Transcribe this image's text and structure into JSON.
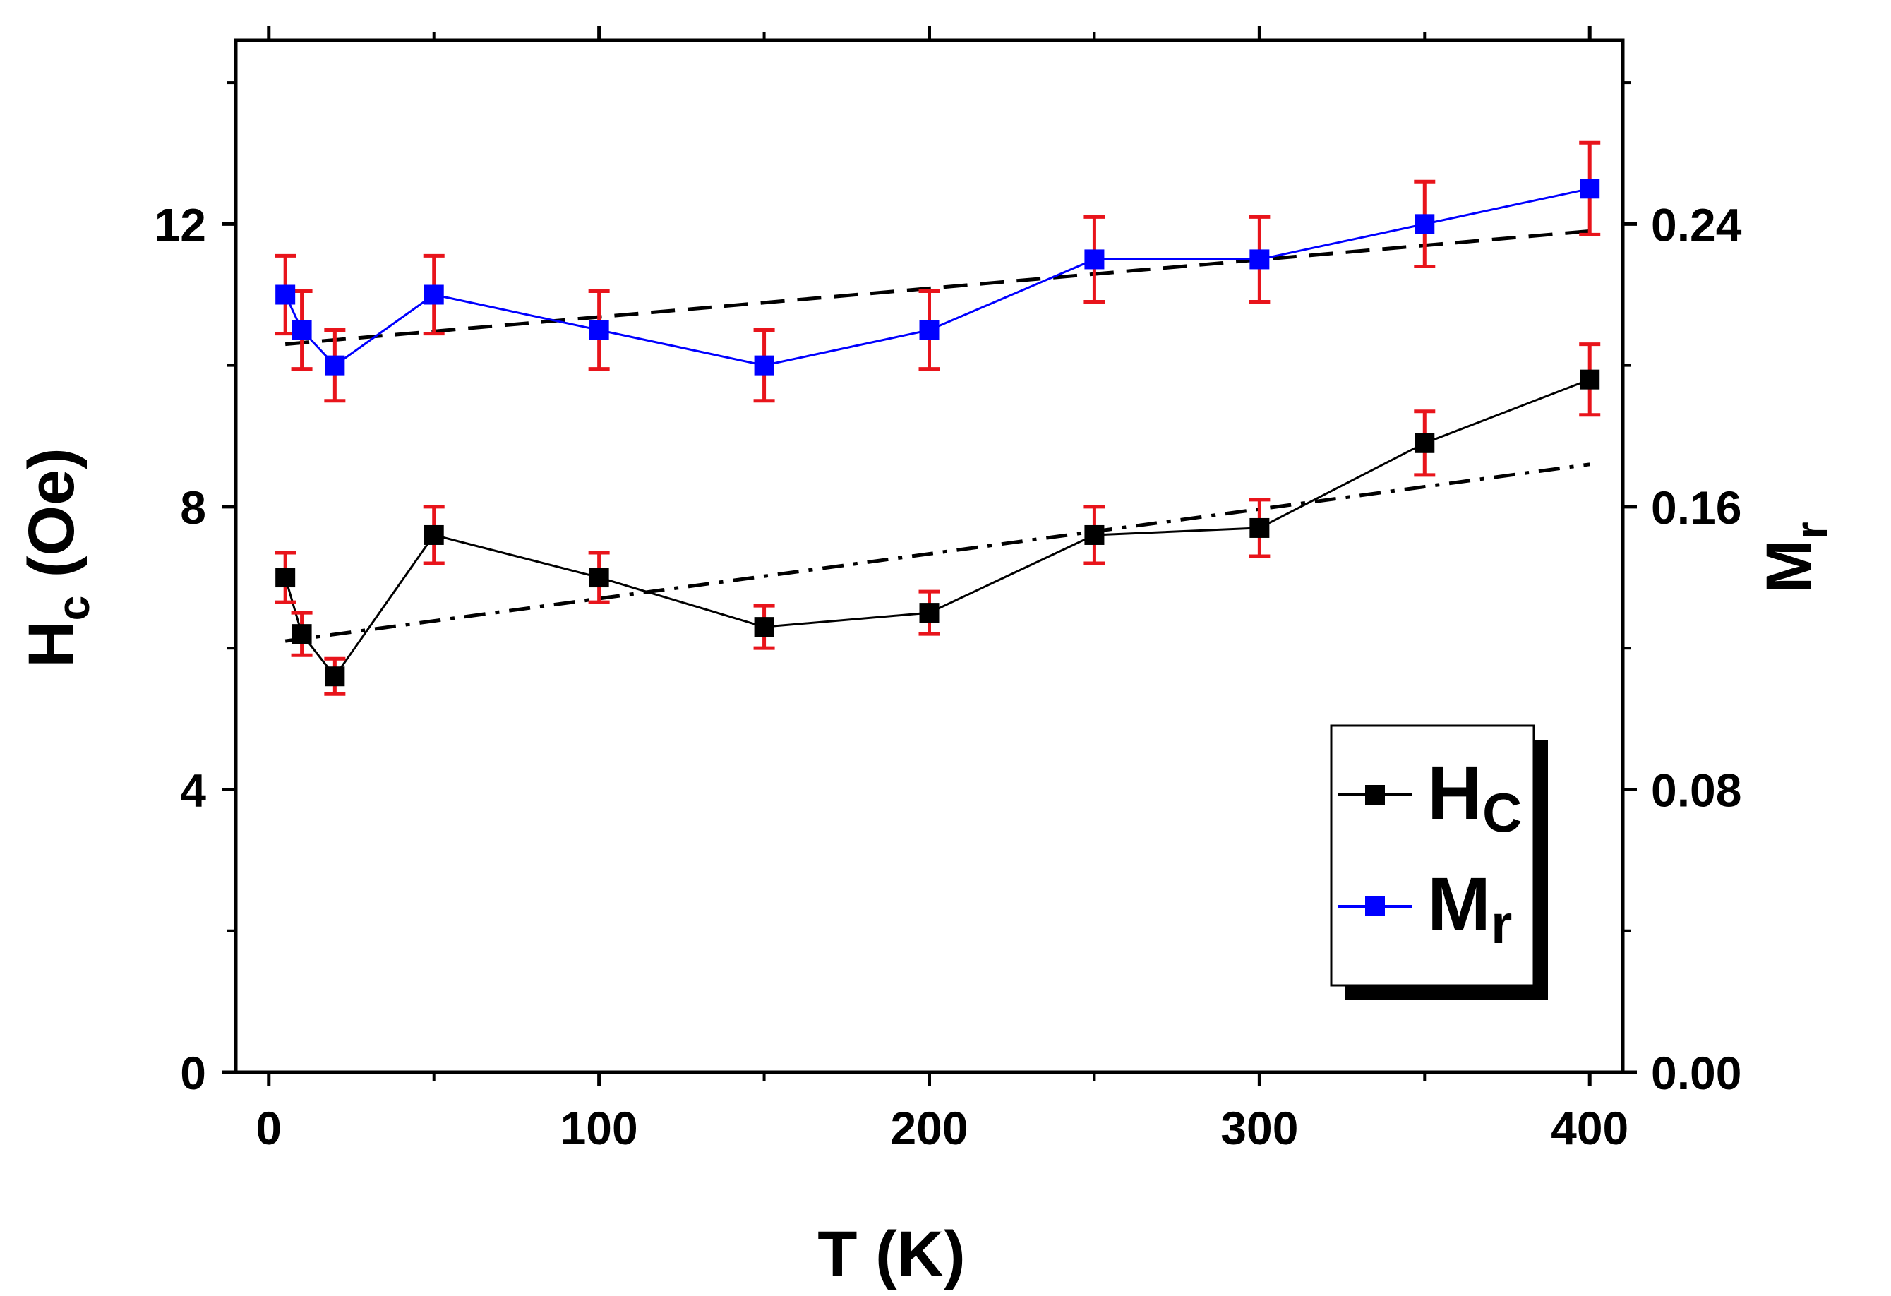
{
  "chart_data": {
    "type": "line",
    "title": "",
    "xlabel": "T (K)",
    "ylabel": {
      "main": "H",
      "sub": "c",
      "rest": " (Oe)"
    },
    "y2label": {
      "main": "M",
      "sub": "r"
    },
    "xlim": [
      -10,
      410
    ],
    "ylim": [
      0,
      14.6
    ],
    "y2lim": [
      0,
      0.292
    ],
    "xticks": [
      0,
      100,
      200,
      300,
      400
    ],
    "yticks": [
      0,
      4,
      8,
      12
    ],
    "yticklabels": [
      "0",
      "4",
      "8",
      "12"
    ],
    "y2ticks": [
      0,
      0.08,
      0.16,
      0.24
    ],
    "y2ticklabels": [
      "0.00",
      "0.08",
      "0.16",
      "0.24"
    ],
    "series": [
      {
        "name": "Hc",
        "axis": "left",
        "color": "#000000",
        "marker": "square",
        "x": [
          5,
          10,
          20,
          50,
          100,
          150,
          200,
          250,
          300,
          350,
          400
        ],
        "values": [
          7.0,
          6.2,
          5.6,
          7.6,
          7.0,
          6.3,
          6.5,
          7.6,
          7.7,
          8.9,
          9.8
        ],
        "errors": [
          0.35,
          0.3,
          0.25,
          0.4,
          0.35,
          0.3,
          0.3,
          0.4,
          0.4,
          0.45,
          0.5
        ],
        "error_color": "#e8141b"
      },
      {
        "name": "Mr",
        "axis": "right",
        "color": "#0000ff",
        "marker": "square",
        "x": [
          5,
          10,
          20,
          50,
          100,
          150,
          200,
          250,
          300,
          350,
          400
        ],
        "values": [
          0.22,
          0.21,
          0.2,
          0.22,
          0.21,
          0.2,
          0.21,
          0.23,
          0.23,
          0.24,
          0.25
        ],
        "errors": [
          0.011,
          0.011,
          0.01,
          0.011,
          0.011,
          0.01,
          0.011,
          0.012,
          0.012,
          0.012,
          0.013
        ],
        "error_color": "#e8141b"
      }
    ],
    "fits": [
      {
        "name": "Mr linear fit",
        "axis": "right",
        "style": "dashed",
        "x": [
          5,
          400
        ],
        "values": [
          0.206,
          0.238
        ]
      },
      {
        "name": "Hc linear fit",
        "axis": "left",
        "style": "dash-dot",
        "x": [
          5,
          400
        ],
        "values": [
          6.1,
          8.6
        ]
      }
    ],
    "legend": {
      "position": "bottom-right",
      "entries": [
        {
          "main": "H",
          "sub": "C"
        },
        {
          "main": "M",
          "sub": "r"
        }
      ]
    }
  }
}
